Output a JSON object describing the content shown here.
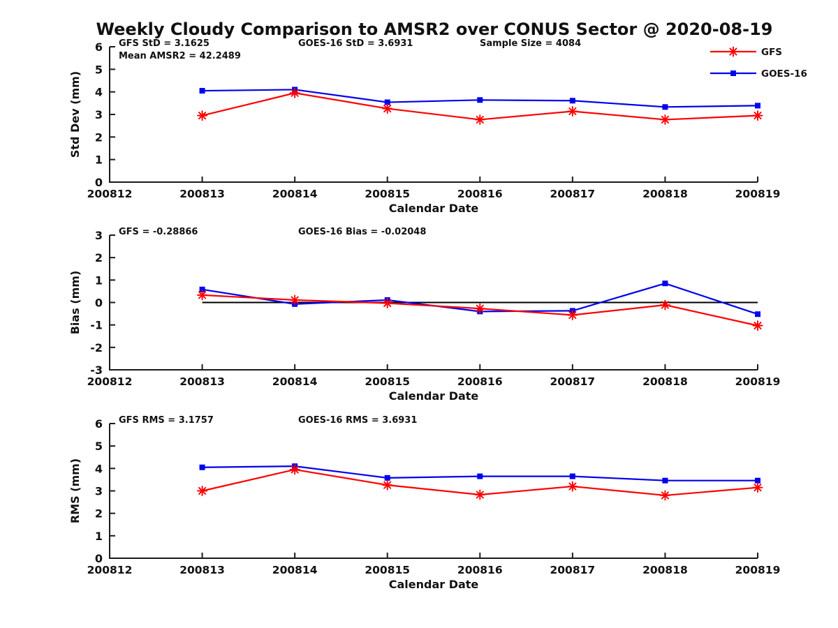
{
  "title": "Weekly Cloudy Comparison to AMSR2 over CONUS Sector @ 2020-08-19",
  "colors": {
    "gfs": "#ff0000",
    "goes16": "#0000ee",
    "axis": "#1a1a1a",
    "zero_line": "#000000"
  },
  "legend": {
    "position": "top-right",
    "items": [
      {
        "label": "GFS",
        "marker": "asterisk",
        "color": "#ff0000"
      },
      {
        "label": "GOES-16",
        "marker": "square",
        "color": "#0000ee"
      }
    ]
  },
  "chart_data": [
    {
      "type": "line",
      "ylabel": "Std Dev (mm)",
      "xlabel": "Calendar Date",
      "ylim": [
        0,
        6
      ],
      "yticks": [
        "0",
        "1",
        "2",
        "3",
        "4",
        "5",
        "6"
      ],
      "x_tick_labels": [
        "200812",
        "200813",
        "200814",
        "200815",
        "200816",
        "200817",
        "200818",
        "200819"
      ],
      "x": [
        "200813",
        "200814",
        "200815",
        "200816",
        "200817",
        "200818",
        "200819"
      ],
      "grid": false,
      "zero_line": false,
      "annotations": [
        {
          "text": "GFS StD = 3.1625",
          "col": 0,
          "row": 0
        },
        {
          "text": "Mean AMSR2 = 42.2489",
          "col": 0,
          "row": 1
        },
        {
          "text": "GOES-16 StD = 3.6931",
          "col": 1,
          "row": 0
        },
        {
          "text": "Sample Size = 4084",
          "col": 2,
          "row": 0
        }
      ],
      "series": [
        {
          "name": "GFS",
          "color": "#ff0000",
          "marker": "asterisk",
          "values": [
            2.95,
            3.95,
            3.26,
            2.77,
            3.14,
            2.77,
            2.95
          ]
        },
        {
          "name": "GOES-16",
          "color": "#0000ee",
          "marker": "square",
          "values": [
            4.05,
            4.1,
            3.54,
            3.64,
            3.61,
            3.33,
            3.39
          ]
        }
      ]
    },
    {
      "type": "line",
      "ylabel": "Bias (mm)",
      "xlabel": "Calendar Date",
      "ylim": [
        -3,
        3
      ],
      "yticks": [
        "-3",
        "-2",
        "-1",
        "0",
        "1",
        "2",
        "3"
      ],
      "x_tick_labels": [
        "200812",
        "200813",
        "200814",
        "200815",
        "200816",
        "200817",
        "200818",
        "200819"
      ],
      "x": [
        "200813",
        "200814",
        "200815",
        "200816",
        "200817",
        "200818",
        "200819"
      ],
      "grid": false,
      "zero_line": true,
      "annotations": [
        {
          "text": "GFS = -0.28866",
          "col": 0,
          "row": 0
        },
        {
          "text": "GOES-16 Bias  = -0.02048",
          "col": 1,
          "row": 0
        }
      ],
      "series": [
        {
          "name": "GFS",
          "color": "#ff0000",
          "marker": "asterisk",
          "values": [
            0.33,
            0.11,
            -0.03,
            -0.27,
            -0.56,
            -0.11,
            -1.03
          ]
        },
        {
          "name": "GOES-16",
          "color": "#0000ee",
          "marker": "square",
          "values": [
            0.58,
            -0.07,
            0.11,
            -0.4,
            -0.37,
            0.85,
            -0.52
          ]
        }
      ]
    },
    {
      "type": "line",
      "ylabel": "RMS (mm)",
      "xlabel": "Calendar Date",
      "ylim": [
        0,
        6
      ],
      "yticks": [
        "0",
        "1",
        "2",
        "3",
        "4",
        "5",
        "6"
      ],
      "x_tick_labels": [
        "200812",
        "200813",
        "200814",
        "200815",
        "200816",
        "200817",
        "200818",
        "200819"
      ],
      "x": [
        "200813",
        "200814",
        "200815",
        "200816",
        "200817",
        "200818",
        "200819"
      ],
      "grid": false,
      "zero_line": false,
      "annotations": [
        {
          "text": "GFS RMS = 3.1757",
          "col": 0,
          "row": 0
        },
        {
          "text": "GOES-16 RMS = 3.6931",
          "col": 1,
          "row": 0
        }
      ],
      "series": [
        {
          "name": "GFS",
          "color": "#ff0000",
          "marker": "asterisk",
          "values": [
            3.0,
            3.95,
            3.26,
            2.83,
            3.2,
            2.8,
            3.15
          ]
        },
        {
          "name": "GOES-16",
          "color": "#0000ee",
          "marker": "square",
          "values": [
            4.05,
            4.1,
            3.58,
            3.65,
            3.65,
            3.46,
            3.46
          ]
        }
      ]
    }
  ]
}
